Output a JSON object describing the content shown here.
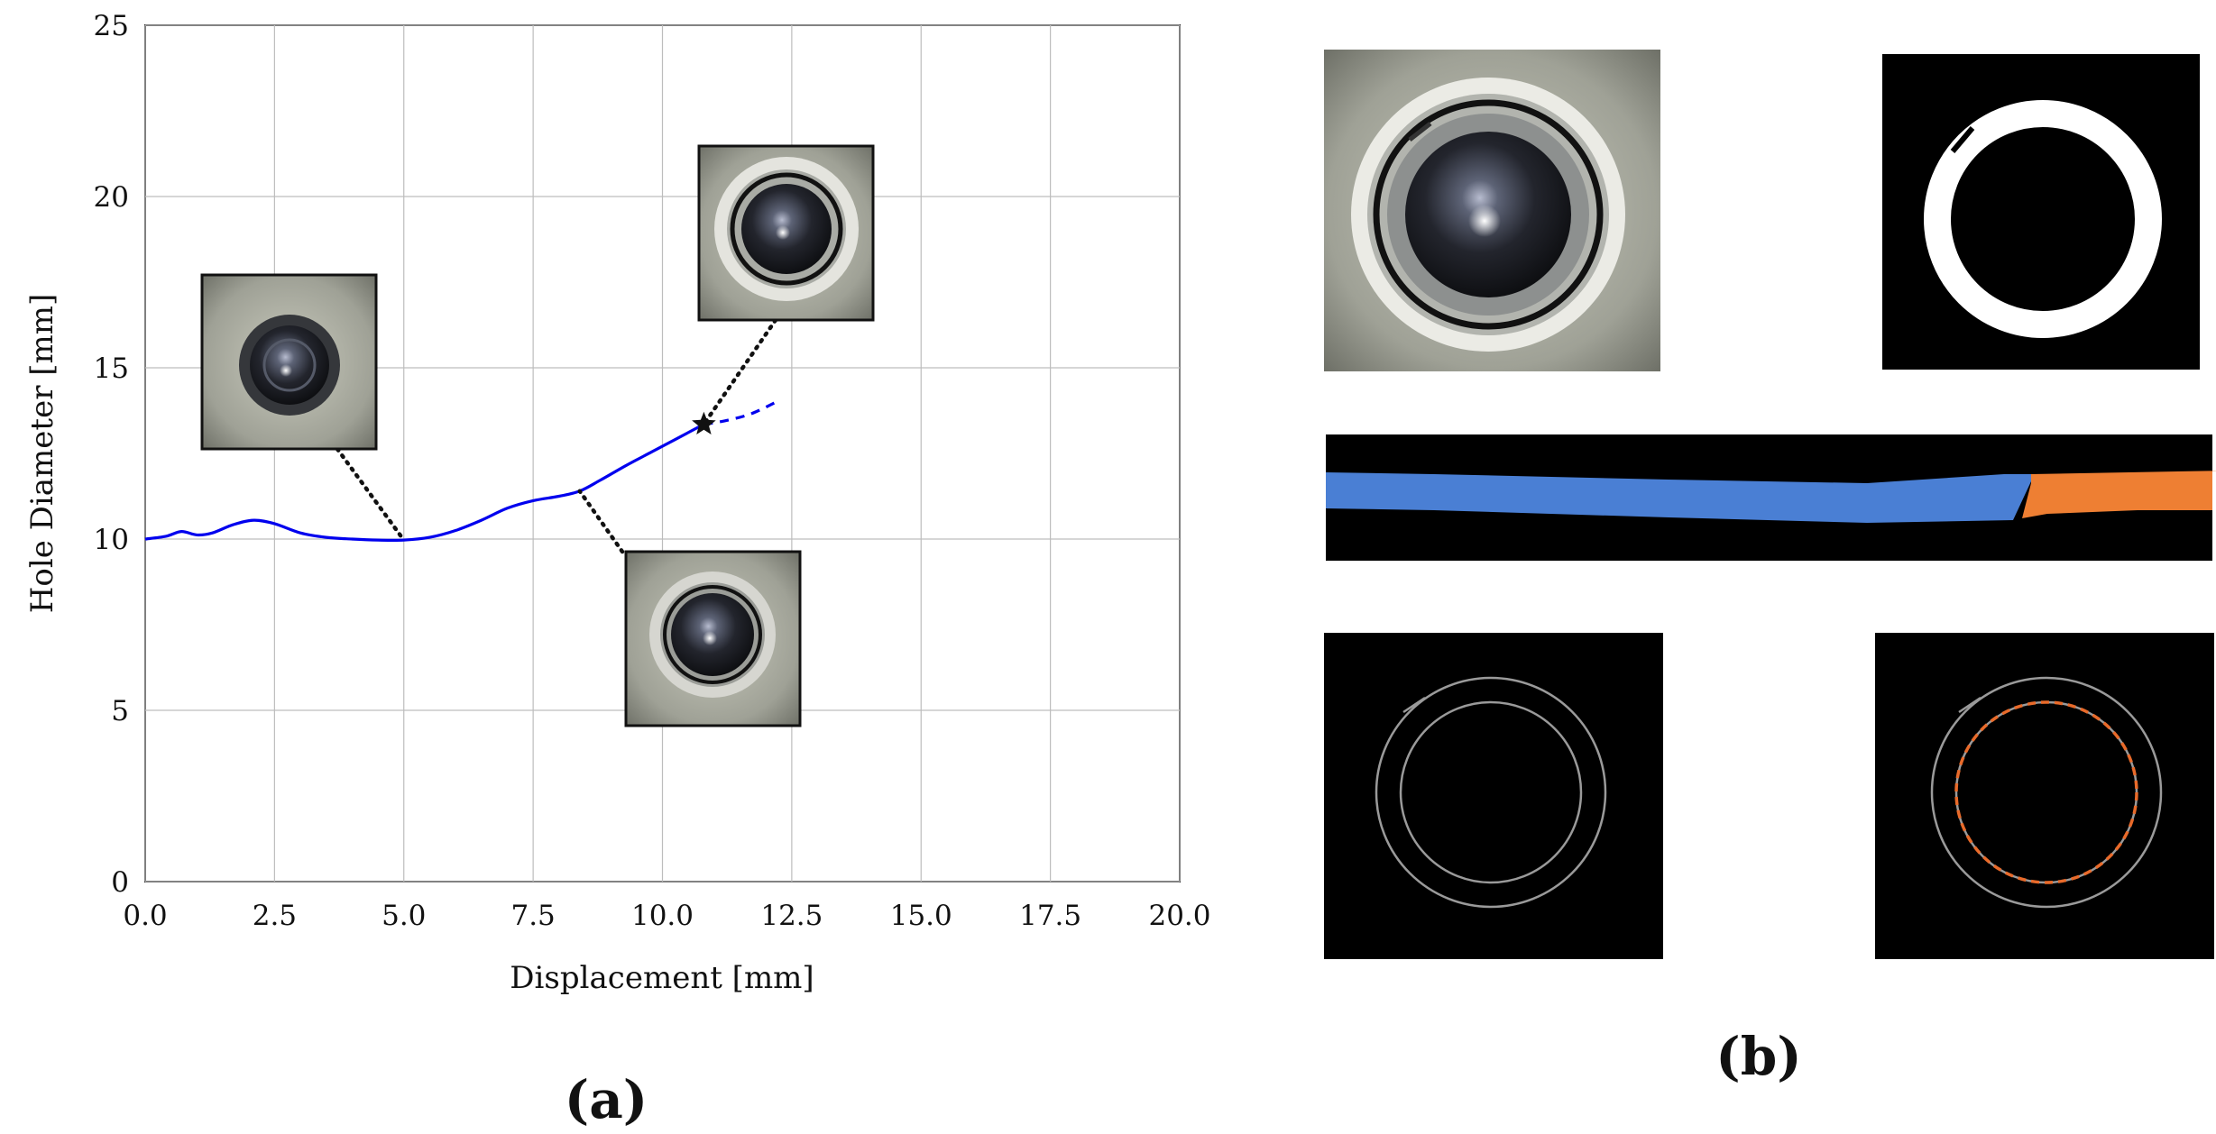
{
  "chart_data": {
    "type": "line",
    "xlabel": "Displacement [mm]",
    "ylabel": "Hole Diameter [mm]",
    "xlim": [
      0,
      20
    ],
    "ylim": [
      0,
      25
    ],
    "grid": true,
    "x_tick_labels": [
      "0.0",
      "2.5",
      "5.0",
      "7.5",
      "10.0",
      "12.5",
      "15.0",
      "17.5",
      "20.0"
    ],
    "y_tick_labels": [
      "0",
      "5",
      "10",
      "15",
      "20",
      "25"
    ],
    "series": [
      {
        "style": "solid",
        "color": "#0000ee",
        "points": [
          [
            0,
            10.0
          ],
          [
            0.4,
            10.08
          ],
          [
            0.7,
            10.22
          ],
          [
            1.0,
            10.12
          ],
          [
            1.3,
            10.18
          ],
          [
            1.7,
            10.42
          ],
          [
            2.1,
            10.55
          ],
          [
            2.5,
            10.45
          ],
          [
            3.0,
            10.18
          ],
          [
            3.5,
            10.05
          ],
          [
            4.0,
            10.0
          ],
          [
            4.5,
            9.97
          ],
          [
            5.0,
            9.97
          ],
          [
            5.5,
            10.05
          ],
          [
            6.0,
            10.25
          ],
          [
            6.5,
            10.55
          ],
          [
            7.0,
            10.9
          ],
          [
            7.5,
            11.12
          ],
          [
            8.0,
            11.25
          ],
          [
            8.4,
            11.4
          ],
          [
            8.8,
            11.72
          ],
          [
            9.3,
            12.15
          ],
          [
            9.8,
            12.55
          ],
          [
            10.3,
            12.95
          ],
          [
            10.8,
            13.35
          ]
        ]
      },
      {
        "style": "dashed",
        "color": "#0000ee",
        "points": [
          [
            10.8,
            13.35
          ],
          [
            11.2,
            13.45
          ],
          [
            11.7,
            13.65
          ],
          [
            12.2,
            14.0
          ]
        ]
      }
    ],
    "marker": {
      "shape": "star",
      "x": 10.8,
      "y": 13.35,
      "color": "#111111"
    },
    "insets": [
      {
        "anchor": [
          5.0,
          9.97
        ],
        "icon": "hole-photo-start-icon"
      },
      {
        "anchor": [
          8.4,
          11.4
        ],
        "icon": "hole-photo-middle-icon"
      },
      {
        "anchor": [
          10.8,
          13.35
        ],
        "icon": "hole-photo-end-icon"
      }
    ]
  },
  "panels": {
    "a_label": "(a)",
    "b_label": "(b)"
  },
  "panel_b": {
    "images": [
      {
        "icon": "hole-photo-icon"
      },
      {
        "icon": "binary-ring-mask-icon"
      },
      {
        "icon": "unwrapped-ring-strip-icon",
        "colors": [
          "#4a7fd4",
          "#ee7f33"
        ]
      },
      {
        "icon": "ring-edge-contour-icon"
      },
      {
        "icon": "ring-edge-fitted-circle-icon",
        "fit_color": "#e86a2a"
      }
    ]
  }
}
